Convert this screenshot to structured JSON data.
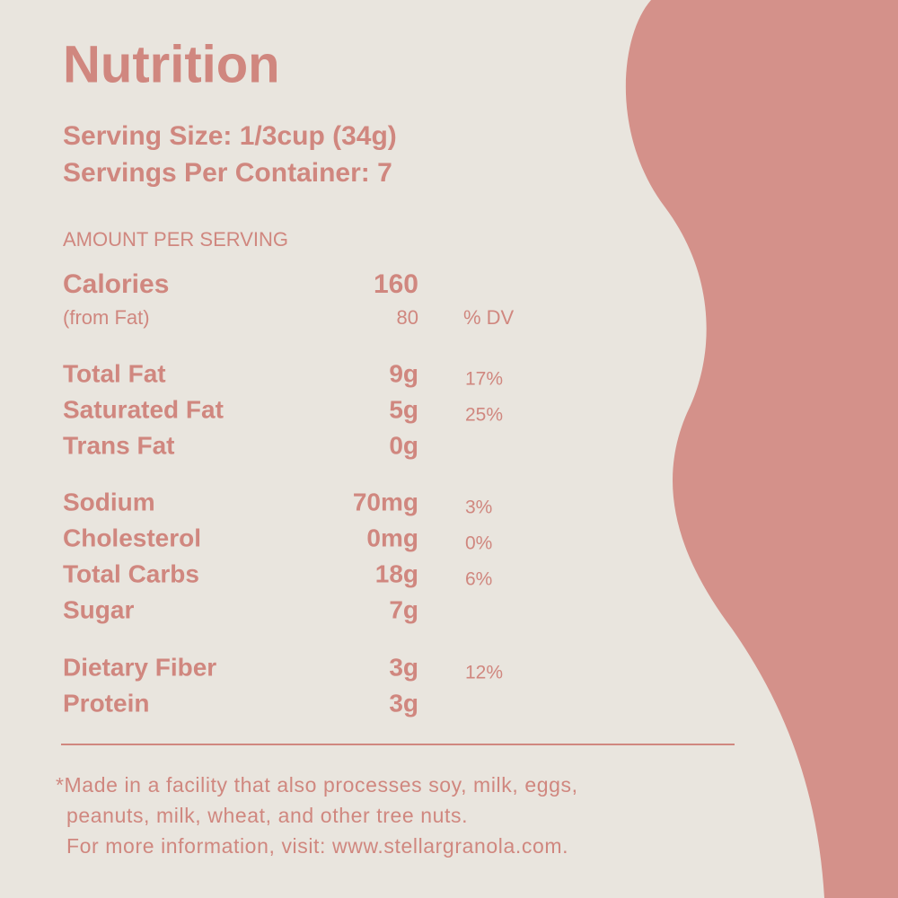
{
  "title": "Nutrition",
  "serving_size": "Serving Size: 1/3cup (34g)",
  "servings_per_container": "Servings Per Container: 7",
  "amount_header": "AMOUNT PER SERVING",
  "calories": {
    "name": "Calories",
    "amount": "160"
  },
  "from_fat": {
    "name": "(from Fat)",
    "amount": "80",
    "dv_header": "% DV"
  },
  "groups": [
    [
      {
        "name": "Total Fat",
        "amount": "9g",
        "dv": "17%"
      },
      {
        "name": "Saturated Fat",
        "amount": "5g",
        "dv": "25%"
      },
      {
        "name": "Trans Fat",
        "amount": "0g"
      }
    ],
    [
      {
        "name": "Sodium",
        "amount": "70mg",
        "dv": "3%"
      },
      {
        "name": "Cholesterol",
        "amount": "0mg",
        "dv": "0%"
      },
      {
        "name": "Total Carbs",
        "amount": "18g",
        "dv": "6%"
      },
      {
        "name": "Sugar",
        "amount": "7g"
      }
    ],
    [
      {
        "name": "Dietary Fiber",
        "amount": "3g",
        "dv": "12%"
      },
      {
        "name": "Protein",
        "amount": "3g"
      }
    ]
  ],
  "footnote": [
    "*Made in a facility that also processes soy, milk, eggs,",
    "peanuts, milk, wheat, and other tree nuts.",
    "For more information, visit: www.stellargranola.com."
  ]
}
